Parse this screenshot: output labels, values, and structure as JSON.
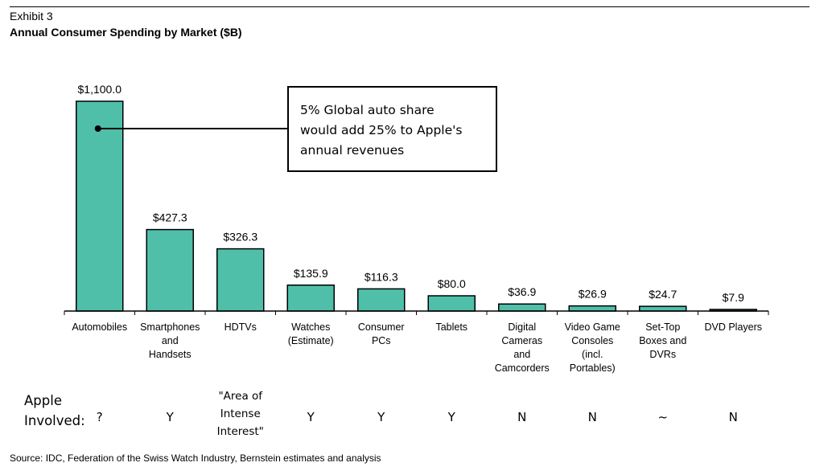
{
  "header": {
    "exhibit": "Exhibit 3",
    "title": "Annual Consumer Spending by Market ($B)"
  },
  "chart_data": {
    "type": "bar",
    "title": "Annual Consumer Spending by Market ($B)",
    "categories": [
      "Automobiles",
      "Smartphones\nand\nHandsets",
      "HDTVs",
      "Watches\n(Estimate)",
      "Consumer\nPCs",
      "Tablets",
      "Digital\nCameras\nand\nCamcorders",
      "Video Game\nConsoles\n(incl.\nPortables)",
      "Set-Top\nBoxes and\nDVRs",
      "DVD Players"
    ],
    "values": [
      1100.0,
      427.3,
      326.3,
      135.9,
      116.3,
      80.0,
      36.9,
      26.9,
      24.7,
      7.9
    ],
    "data_labels": [
      "$1,100.0",
      "$427.3",
      "$326.3",
      "$135.9",
      "$116.3",
      "$80.0",
      "$36.9",
      "$26.9",
      "$24.7",
      "$7.9"
    ],
    "xlabel": "",
    "ylabel": "",
    "ylim": [
      0,
      1100
    ],
    "grid": false,
    "colors": {
      "bar": "#4fbfaa",
      "bar_last": "#2a6f64",
      "edge": "#000000"
    }
  },
  "callout": {
    "line1": "5% Global auto share",
    "line2": "would add 25% to Apple's",
    "line3": "annual revenues"
  },
  "apple_involved": {
    "label_line1": "Apple",
    "label_line2": "Involved:",
    "values": [
      "?",
      "Y",
      "\"Area of\nIntense\nInterest\"",
      "Y",
      "Y",
      "Y",
      "N",
      "N",
      "~",
      "N"
    ]
  },
  "source": "Source:  IDC, Federation of the Swiss Watch Industry, Bernstein estimates and analysis"
}
